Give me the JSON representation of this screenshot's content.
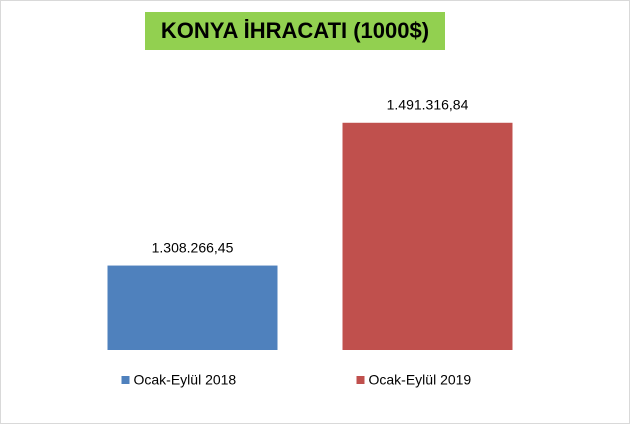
{
  "chart_data": {
    "type": "bar",
    "title": "KONYA İHRACATI (1000$)",
    "series": [
      {
        "name": "Ocak-Eylül 2018",
        "color": "#4f81bd",
        "values": [
          1308266.45
        ],
        "value_labels": [
          "1.308.266,45"
        ]
      },
      {
        "name": "Ocak-Eylül 2019",
        "color": "#c0504d",
        "values": [
          1491316.84
        ],
        "value_labels": [
          "1.491.316,84"
        ]
      }
    ],
    "ylim": [
      1200000,
      1550000
    ]
  }
}
